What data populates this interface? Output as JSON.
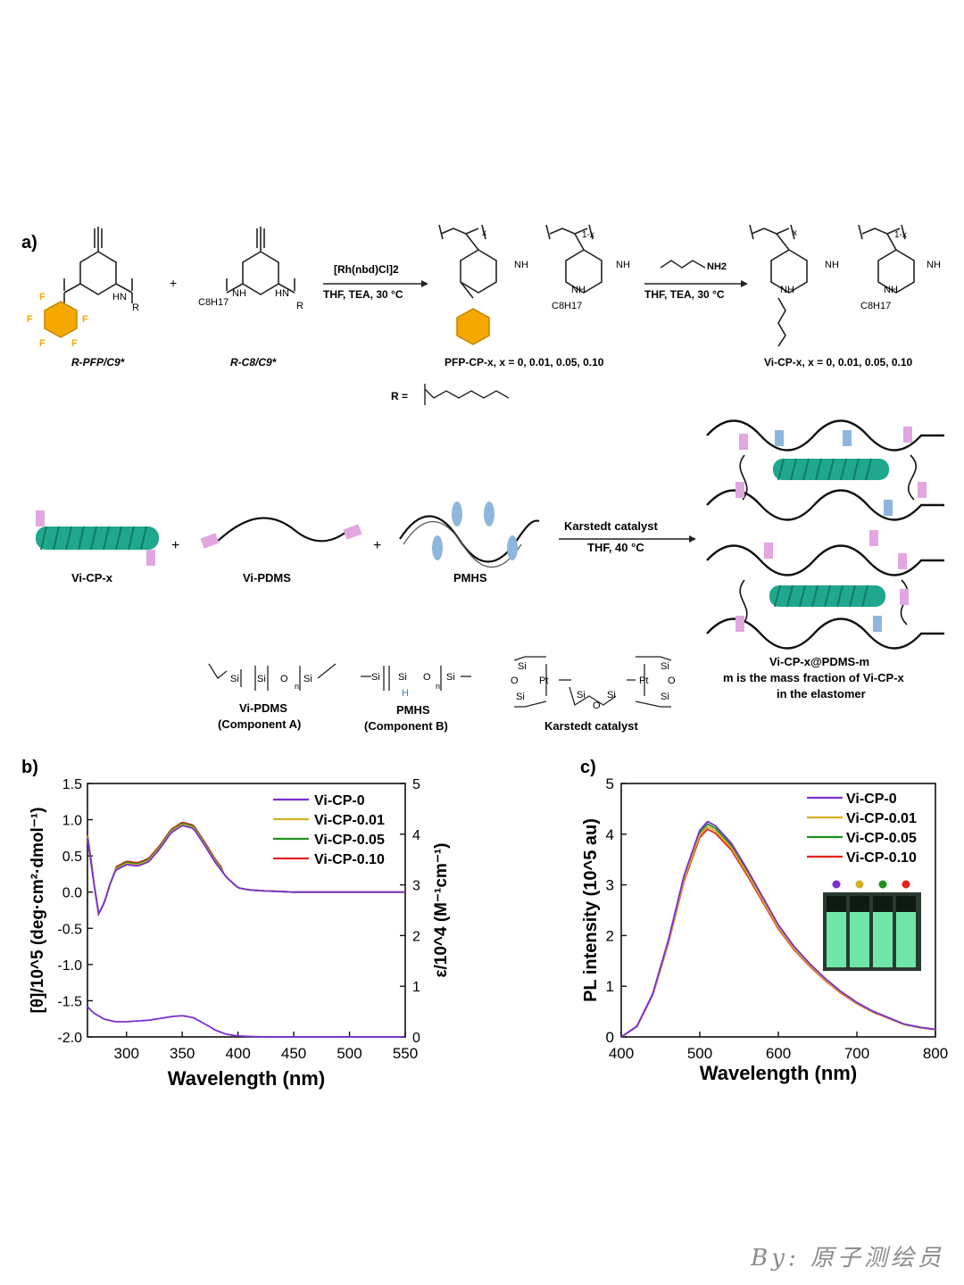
{
  "panel_a": {
    "label": "a)",
    "monomers": {
      "pfp": "R-PFP/C9*",
      "c8": "R-C8/C9*"
    },
    "plus": "+",
    "reaction1": {
      "catalyst": "[Rh(nbd)Cl]2",
      "conditions": "THF, TEA, 30 °C"
    },
    "reaction2": {
      "reagent": "NH2",
      "reagent_index": "8",
      "conditions": "THF, TEA, 30 °C"
    },
    "reaction3": {
      "catalyst": "Karstedt catalyst",
      "conditions": "THF, 40 °C"
    },
    "polymer1": "PFP-CP-x, x = 0, 0.01, 0.05, 0.10",
    "polymer2": "Vi-CP-x, x = 0, 0.01, 0.05, 0.10",
    "r_group": "R =",
    "comp_labels": [
      "Vi-CP-x",
      "Vi-PDMS",
      "PMHS"
    ],
    "vi_pdms": {
      "name": "Vi-PDMS",
      "role": "(Component A)"
    },
    "pmhs": {
      "name": "PMHS",
      "role": "(Component B)"
    },
    "karstedt": "Karstedt catalyst",
    "product": [
      "Vi-CP-x@PDMS-m",
      "m is the mass fraction of Vi-CP-x",
      "in the elastomer"
    ],
    "atoms": {
      "F": "F",
      "NH": "NH",
      "HN": "HN",
      "O": "O",
      "R": "R",
      "Si": "Si",
      "H": "H",
      "Pt": "Pt",
      "n": "n",
      "x": "x",
      "onex": "1-x",
      "C8H17": "C8H17"
    },
    "colors": {
      "pfp_ring": "#f5a800",
      "helix": "#1fa88d",
      "link_pink": "#e2a6e0",
      "link_blue": "#8fb6dd"
    }
  },
  "chart_data": [
    {
      "type": "line",
      "panel": "b)",
      "xlabel": "Wavelength (nm)",
      "ylabel": "[θ]/10^5 (deg·cm²·dmol⁻¹)",
      "y2label": "ε/10^4 (M⁻¹cm⁻¹)",
      "xlim": [
        265,
        550
      ],
      "ylim": [
        -2.0,
        1.5
      ],
      "y2lim": [
        0,
        5
      ],
      "xticks": [
        "300",
        "350",
        "400",
        "450",
        "500",
        "550"
      ],
      "yticks": [
        "1.5",
        "1.0",
        "0.5",
        "0.0",
        "-0.5",
        "-1.0",
        "-1.5",
        "-2.0"
      ],
      "y2ticks": [
        "5",
        "4",
        "3",
        "2",
        "1",
        "0"
      ],
      "legend_position": "top-right",
      "series": [
        {
          "name": "Vi-CP-0",
          "color": "#7a2fd0"
        },
        {
          "name": "Vi-CP-0.01",
          "color": "#d4b023"
        },
        {
          "name": "Vi-CP-0.05",
          "color": "#1f8f1f"
        },
        {
          "name": "Vi-CP-0.10",
          "color": "#e3221f"
        }
      ],
      "cd": {
        "x": [
          265,
          270,
          275,
          280,
          285,
          290,
          300,
          310,
          320,
          330,
          340,
          350,
          360,
          370,
          380,
          390,
          400,
          410,
          420,
          450,
          500,
          550
        ],
        "y": [
          0.75,
          0.2,
          -0.3,
          -0.15,
          0.1,
          0.3,
          0.38,
          0.36,
          0.42,
          0.6,
          0.82,
          0.92,
          0.88,
          0.65,
          0.4,
          0.2,
          0.06,
          0.03,
          0.02,
          0.0,
          0.0,
          0.0
        ]
      },
      "absorption": {
        "series": "Vi-CP-0",
        "x": [
          265,
          270,
          280,
          290,
          300,
          320,
          340,
          350,
          360,
          370,
          380,
          390,
          400,
          420,
          450,
          500,
          550
        ],
        "y": [
          0.6,
          0.48,
          0.35,
          0.3,
          0.3,
          0.33,
          0.4,
          0.42,
          0.38,
          0.26,
          0.13,
          0.05,
          0.02,
          0.0,
          0.0,
          0.0,
          0.0
        ]
      }
    },
    {
      "type": "line",
      "panel": "c)",
      "xlabel": "Wavelength (nm)",
      "ylabel": "PL intensity (10^5 au)",
      "xlim": [
        400,
        800
      ],
      "ylim": [
        0,
        5
      ],
      "xticks": [
        "400",
        "500",
        "600",
        "700",
        "800"
      ],
      "yticks": [
        "5",
        "4",
        "3",
        "2",
        "1",
        "0"
      ],
      "legend_position": "top-right",
      "series": [
        {
          "name": "Vi-CP-0",
          "color": "#7a2fd0",
          "peak": 4.25
        },
        {
          "name": "Vi-CP-0.01",
          "color": "#d4b023",
          "peak": 4.15
        },
        {
          "name": "Vi-CP-0.05",
          "color": "#1f8f1f",
          "peak": 4.2
        },
        {
          "name": "Vi-CP-0.10",
          "color": "#e3221f",
          "peak": 4.1
        }
      ],
      "x": [
        400,
        420,
        440,
        460,
        480,
        500,
        510,
        520,
        540,
        560,
        580,
        600,
        620,
        640,
        660,
        680,
        700,
        720,
        740,
        760,
        780,
        800
      ],
      "shape": [
        0.0,
        0.05,
        0.2,
        0.45,
        0.75,
        0.96,
        1.0,
        0.98,
        0.9,
        0.78,
        0.65,
        0.52,
        0.42,
        0.34,
        0.27,
        0.21,
        0.16,
        0.12,
        0.09,
        0.06,
        0.045,
        0.035
      ],
      "vial_dot_colors": [
        "#7a2fd0",
        "#d4b023",
        "#1f8f1f",
        "#e3221f"
      ]
    }
  ],
  "watermark": "By: 原子测绘员"
}
